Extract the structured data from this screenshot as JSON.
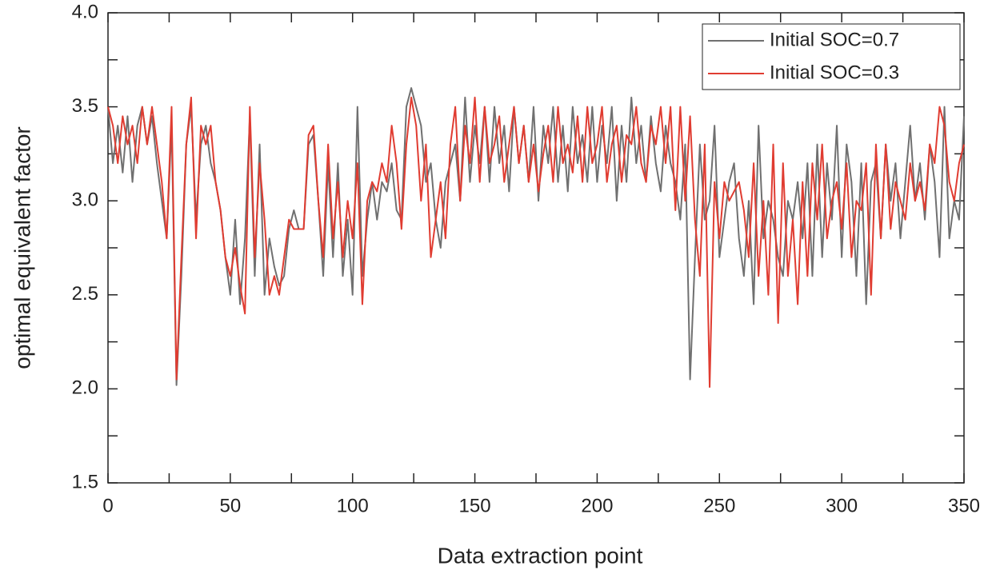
{
  "chart_data": {
    "type": "line",
    "xlabel": "Data extraction point",
    "ylabel": "optimal equivalent factor",
    "x": [
      0,
      2,
      4,
      6,
      8,
      10,
      12,
      14,
      16,
      18,
      20,
      22,
      24,
      26,
      28,
      30,
      32,
      34,
      36,
      38,
      40,
      42,
      44,
      46,
      48,
      50,
      52,
      54,
      56,
      58,
      60,
      62,
      64,
      66,
      68,
      70,
      72,
      74,
      76,
      78,
      80,
      82,
      84,
      86,
      88,
      90,
      92,
      94,
      96,
      98,
      100,
      102,
      104,
      106,
      108,
      110,
      112,
      114,
      116,
      118,
      120,
      122,
      124,
      126,
      128,
      130,
      132,
      134,
      136,
      138,
      140,
      142,
      144,
      146,
      148,
      150,
      152,
      154,
      156,
      158,
      160,
      162,
      164,
      166,
      168,
      170,
      172,
      174,
      176,
      178,
      180,
      182,
      184,
      186,
      188,
      190,
      192,
      194,
      196,
      198,
      200,
      202,
      204,
      206,
      208,
      210,
      212,
      214,
      216,
      218,
      220,
      222,
      224,
      226,
      228,
      230,
      232,
      234,
      236,
      238,
      240,
      242,
      244,
      246,
      248,
      250,
      252,
      254,
      256,
      258,
      260,
      262,
      264,
      266,
      268,
      270,
      272,
      274,
      276,
      278,
      280,
      282,
      284,
      286,
      288,
      290,
      292,
      294,
      296,
      298,
      300,
      302,
      304,
      306,
      308,
      310,
      312,
      314,
      316,
      318,
      320,
      322,
      324,
      326,
      328,
      330,
      332,
      334,
      336,
      338,
      340,
      342,
      344,
      346,
      348,
      350
    ],
    "series": [
      {
        "name": "Initial SOC=0.7",
        "color": "#707070",
        "values": [
          3.5,
          3.2,
          3.4,
          3.15,
          3.45,
          3.1,
          3.4,
          3.5,
          3.3,
          3.45,
          3.2,
          3.0,
          2.8,
          3.4,
          2.02,
          2.6,
          3.3,
          3.5,
          2.9,
          3.3,
          3.4,
          3.2,
          3.1,
          2.95,
          2.7,
          2.5,
          2.9,
          2.45,
          2.8,
          3.45,
          2.6,
          3.3,
          2.5,
          2.8,
          2.65,
          2.55,
          2.6,
          2.85,
          2.95,
          2.85,
          2.85,
          3.3,
          3.35,
          3.0,
          2.6,
          3.2,
          2.7,
          3.2,
          2.6,
          2.9,
          2.5,
          3.5,
          2.6,
          2.9,
          3.1,
          2.9,
          3.1,
          3.05,
          3.2,
          2.95,
          2.9,
          3.5,
          3.6,
          3.5,
          3.4,
          3.1,
          3.2,
          2.9,
          2.75,
          3.1,
          3.2,
          3.3,
          3.0,
          3.55,
          3.1,
          3.4,
          3.2,
          3.5,
          3.1,
          3.5,
          3.2,
          3.4,
          3.05,
          3.5,
          3.2,
          3.4,
          3.1,
          3.5,
          3.0,
          3.4,
          3.2,
          3.5,
          3.1,
          3.4,
          3.05,
          3.5,
          3.2,
          3.35,
          3.1,
          3.5,
          3.1,
          3.4,
          3.2,
          3.5,
          3.0,
          3.4,
          3.1,
          3.55,
          3.2,
          3.4,
          3.1,
          3.45,
          3.2,
          3.05,
          3.4,
          3.2,
          3.1,
          2.9,
          3.3,
          2.05,
          2.7,
          3.3,
          2.9,
          3.0,
          3.4,
          2.7,
          2.9,
          3.1,
          3.2,
          2.8,
          2.6,
          3.0,
          2.45,
          3.4,
          2.8,
          3.0,
          2.9,
          2.7,
          2.6,
          3.0,
          2.9,
          3.1,
          2.8,
          3.2,
          2.6,
          3.3,
          2.7,
          3.2,
          2.9,
          3.4,
          2.7,
          3.3,
          3.1,
          2.6,
          3.2,
          2.45,
          3.1,
          3.2,
          2.8,
          3.3,
          3.0,
          3.2,
          2.8,
          3.1,
          3.4,
          3.0,
          3.2,
          2.9,
          3.3,
          3.1,
          2.7,
          3.5,
          2.8,
          3.0,
          2.9,
          3.45
        ]
      },
      {
        "name": "Initial SOC=0.3",
        "color": "#e03c31",
        "values": [
          3.5,
          3.4,
          3.2,
          3.45,
          3.3,
          3.4,
          3.2,
          3.5,
          3.3,
          3.5,
          3.3,
          3.1,
          2.8,
          3.5,
          2.05,
          2.7,
          3.3,
          3.55,
          2.8,
          3.4,
          3.3,
          3.4,
          3.1,
          2.95,
          2.7,
          2.6,
          2.75,
          2.55,
          2.4,
          3.5,
          2.7,
          3.2,
          2.9,
          2.5,
          2.6,
          2.5,
          2.7,
          2.9,
          2.85,
          2.85,
          2.85,
          3.35,
          3.4,
          3.0,
          2.7,
          3.3,
          2.8,
          3.1,
          2.7,
          3.0,
          2.8,
          3.2,
          2.45,
          3.0,
          3.1,
          3.05,
          3.2,
          3.1,
          3.4,
          3.2,
          2.85,
          3.3,
          3.55,
          3.4,
          3.0,
          3.3,
          2.7,
          2.9,
          3.1,
          2.8,
          3.3,
          3.5,
          3.0,
          3.4,
          3.2,
          3.55,
          3.1,
          3.5,
          3.2,
          3.3,
          3.45,
          3.1,
          3.3,
          3.5,
          3.2,
          3.4,
          3.1,
          3.3,
          3.05,
          3.25,
          3.4,
          3.1,
          3.5,
          3.2,
          3.3,
          3.15,
          3.45,
          3.1,
          3.5,
          3.2,
          3.3,
          3.5,
          3.1,
          3.3,
          3.4,
          3.1,
          3.35,
          3.3,
          3.5,
          3.2,
          3.1,
          3.4,
          3.3,
          3.5,
          3.2,
          3.5,
          2.95,
          3.5,
          3.0,
          3.45,
          2.9,
          2.6,
          3.3,
          2.01,
          3.1,
          2.8,
          3.1,
          3.0,
          3.05,
          3.1,
          2.95,
          2.7,
          3.2,
          2.6,
          3.0,
          2.5,
          3.3,
          2.35,
          3.2,
          2.6,
          2.9,
          2.45,
          3.1,
          2.6,
          3.2,
          2.9,
          3.3,
          2.8,
          3.0,
          3.1,
          2.85,
          3.2,
          2.7,
          3.0,
          2.95,
          3.2,
          2.5,
          3.3,
          2.8,
          3.3,
          2.85,
          3.1,
          3.0,
          2.9,
          3.2,
          3.0,
          3.1,
          2.95,
          3.3,
          3.2,
          3.5,
          3.4,
          3.1,
          3.0,
          3.2,
          3.3
        ]
      }
    ],
    "xlim": [
      0,
      350
    ],
    "xticks": [
      0,
      50,
      100,
      150,
      200,
      250,
      300,
      350
    ],
    "xticks_minor": [
      25,
      75,
      125,
      175,
      225,
      275,
      325
    ],
    "ylim": [
      1.5,
      4
    ],
    "yticks": [
      1.5,
      {
        "value": 2,
        "label": "2.0"
      },
      2.5,
      {
        "value": 3,
        "label": "3.0"
      },
      3.5,
      {
        "value": 4,
        "label": "4.0"
      }
    ],
    "yticks_minor": [
      1.75,
      2.25,
      2.75,
      3.25,
      3.75
    ],
    "grid": false,
    "legend": "top-right"
  }
}
